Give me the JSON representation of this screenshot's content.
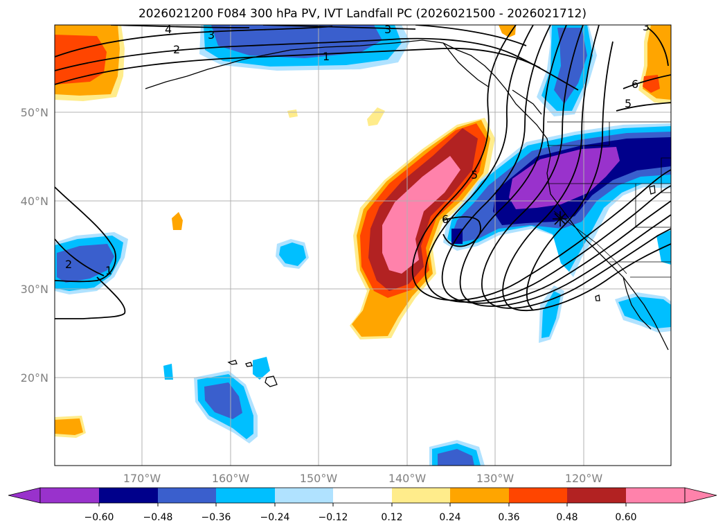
{
  "title": "2026021200 F084 300 hPa PV, IVT Landfall PC (2026021500 - 2026021712)",
  "latitude_labels": [
    "50°N",
    "40°N",
    "30°N",
    "20°N"
  ],
  "longitude_labels": [
    "170°W",
    "160°W",
    "150°W",
    "140°W",
    "130°W",
    "120°W"
  ],
  "colorbar": {
    "colors": [
      "#9932cc",
      "#00008b",
      "#3a5fcd",
      "#00bfff",
      "#b0e2ff",
      "#ffffff",
      "#ffec8b",
      "#ffa500",
      "#ff4500",
      "#b22222",
      "#ff82ab"
    ],
    "tick_labels": [
      "−0.60",
      "−0.48",
      "−0.36",
      "−0.24",
      "−0.12",
      "0.12",
      "0.24",
      "0.36",
      "0.48",
      "0.60"
    ]
  },
  "contour_labels": [
    "4",
    "3",
    "3",
    "2",
    "1",
    "5",
    "5",
    "6",
    "6",
    "2",
    "1",
    "3"
  ]
}
